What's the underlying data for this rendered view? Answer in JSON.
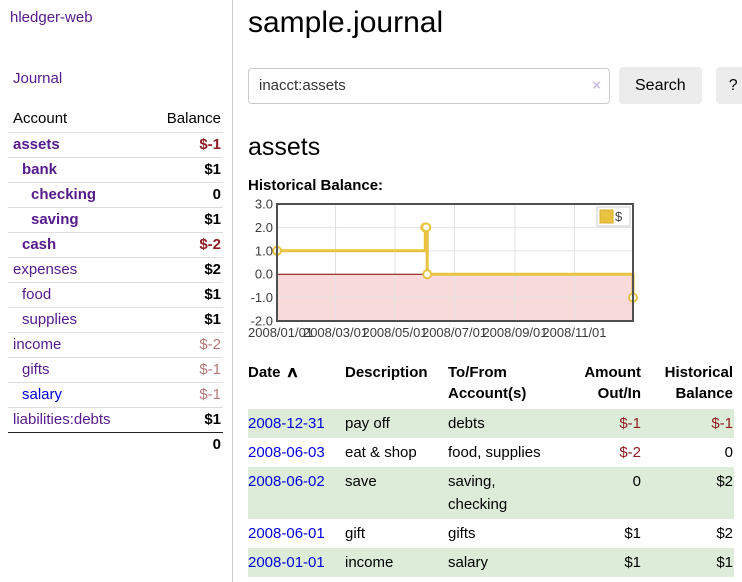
{
  "app": {
    "brand": "hledger-web"
  },
  "sidebar": {
    "journal_link": "Journal",
    "accounts": {
      "header": {
        "account": "Account",
        "balance": "Balance"
      },
      "rows": [
        {
          "name": "assets",
          "balance": "$-1",
          "depth": 1,
          "matched": true,
          "tone": "neg-strong",
          "link": "purple"
        },
        {
          "name": "bank",
          "balance": "$1",
          "depth": 2,
          "matched": true,
          "tone": "",
          "link": "purple"
        },
        {
          "name": "checking",
          "balance": "0",
          "depth": 3,
          "matched": true,
          "tone": "",
          "link": "purple"
        },
        {
          "name": "saving",
          "balance": "$1",
          "depth": 3,
          "matched": true,
          "tone": "",
          "link": "purple"
        },
        {
          "name": "cash",
          "balance": "$-2",
          "depth": 2,
          "matched": true,
          "tone": "neg-strong",
          "link": "purple"
        },
        {
          "name": "expenses",
          "balance": "$2",
          "depth": 1,
          "matched": false,
          "tone": "",
          "link": "purple"
        },
        {
          "name": "food",
          "balance": "$1",
          "depth": 2,
          "matched": false,
          "tone": "",
          "link": "purple"
        },
        {
          "name": "supplies",
          "balance": "$1",
          "depth": 2,
          "matched": false,
          "tone": "",
          "link": "purple"
        },
        {
          "name": "income",
          "balance": "$-2",
          "depth": 1,
          "matched": false,
          "tone": "neg-soft",
          "link": "purple"
        },
        {
          "name": "gifts",
          "balance": "$-1",
          "depth": 2,
          "matched": false,
          "tone": "neg-soft",
          "link": "purple"
        },
        {
          "name": "salary",
          "balance": "$-1",
          "depth": 2,
          "matched": false,
          "tone": "neg-soft",
          "link": "blue"
        },
        {
          "name": "liabilities:debts",
          "balance": "$1",
          "depth": 1,
          "matched": false,
          "tone": "",
          "link": "purple"
        }
      ],
      "total": "0"
    }
  },
  "main": {
    "page_title": "sample.journal",
    "search": {
      "value": "inacct:assets",
      "clear": "×",
      "submit": "Search",
      "help": "?"
    },
    "account_title": "assets",
    "chart_heading": "Historical Balance:"
  },
  "chart_data": {
    "type": "line",
    "subtype": "step",
    "title": "Historical Balance",
    "x_ticks": [
      "2008/01/01",
      "2008/03/01",
      "2008/05/01",
      "2008/07/01",
      "2008/09/01",
      "2008/11/01"
    ],
    "y_ticks": [
      3.0,
      2.0,
      1.0,
      0.0,
      -1.0,
      -2.0
    ],
    "xlim": [
      "2008/01/01",
      "2008/12/31"
    ],
    "ylim": [
      -2,
      3
    ],
    "grid": true,
    "legend": {
      "position": "top-right",
      "label": "$"
    },
    "series": [
      {
        "name": "$",
        "color": "#e8c240",
        "marker": "circle-open",
        "points": [
          [
            "2008/01/01",
            1
          ],
          [
            "2008/06/01",
            2
          ],
          [
            "2008/06/02",
            2
          ],
          [
            "2008/06/03",
            0
          ],
          [
            "2008/12/31",
            -1
          ]
        ]
      }
    ],
    "zero_line_color": "#8b0000",
    "negative_region_color": "#f9dada",
    "grid_color": "#e2e2e2",
    "border_color": "#4f4f4f"
  },
  "register": {
    "columns": [
      "Date",
      "Description",
      "To/From Account(s)",
      "Amount Out/In",
      "Historical Balance"
    ],
    "sort_arrow": "∧",
    "rows": [
      {
        "date": "2008-12-31",
        "description": "pay off",
        "accounts": "debts",
        "amount": "$-1",
        "balance": "$-1",
        "shade": true
      },
      {
        "date": "2008-06-03",
        "description": "eat & shop",
        "accounts": "food, supplies",
        "amount": "$-2",
        "balance": "0",
        "shade": false
      },
      {
        "date": "2008-06-02",
        "description": "save",
        "accounts": "saving, checking",
        "amount": "0",
        "balance": "$2",
        "shade": true
      },
      {
        "date": "2008-06-01",
        "description": "gift",
        "accounts": "gifts",
        "amount": "$1",
        "balance": "$2",
        "shade": false
      },
      {
        "date": "2008-01-01",
        "description": "income",
        "accounts": "salary",
        "amount": "$1",
        "balance": "$1",
        "shade": true
      }
    ]
  },
  "colors": {
    "link_purple": "#551a8b",
    "link_blue": "#0000dd",
    "negative_strong": "#8f1d21",
    "negative_soft": "#b87878",
    "row_shade_green": "#ddecd9",
    "chart_line": "#e8c240",
    "chart_negative_region": "#f9dada",
    "chart_zero_line": "#8b0000",
    "button_bg": "#ececec"
  }
}
